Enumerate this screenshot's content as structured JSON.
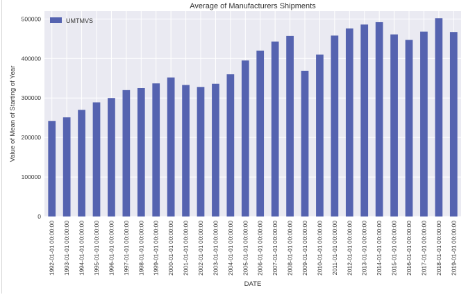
{
  "chart_data": {
    "type": "bar",
    "title": "Average of Manufacturers Shipments",
    "xlabel": "DATE",
    "ylabel": "Value of Mean of Starting of Year",
    "legend": {
      "position": "top-left",
      "entries": [
        "UMTMVS"
      ]
    },
    "grid": true,
    "ylim": [
      0,
      520000
    ],
    "yticks": [
      0,
      100000,
      200000,
      300000,
      400000,
      500000
    ],
    "categories": [
      "1992-01-01 00:00:00",
      "1993-01-01 00:00:00",
      "1994-01-01 00:00:00",
      "1995-01-01 00:00:00",
      "1996-01-01 00:00:00",
      "1997-01-01 00:00:00",
      "1998-01-01 00:00:00",
      "1999-01-01 00:00:00",
      "2000-01-01 00:00:00",
      "2001-01-01 00:00:00",
      "2002-01-01 00:00:00",
      "2003-01-01 00:00:00",
      "2004-01-01 00:00:00",
      "2005-01-01 00:00:00",
      "2006-01-01 00:00:00",
      "2007-01-01 00:00:00",
      "2008-01-01 00:00:00",
      "2009-01-01 00:00:00",
      "2010-01-01 00:00:00",
      "2011-01-01 00:00:00",
      "2012-01-01 00:00:00",
      "2013-01-01 00:00:00",
      "2014-01-01 00:00:00",
      "2015-01-01 00:00:00",
      "2016-01-01 00:00:00",
      "2017-01-01 00:00:00",
      "2018-01-01 00:00:00",
      "2019-01-01 00:00:00"
    ],
    "series": [
      {
        "name": "UMTMVS",
        "color": "#5563b0",
        "values": [
          242000,
          251000,
          270000,
          289000,
          300000,
          320000,
          325000,
          337000,
          352000,
          333000,
          328000,
          336000,
          360000,
          395000,
          420000,
          443000,
          457000,
          369000,
          410000,
          458000,
          476000,
          486000,
          492000,
          461000,
          447000,
          468000,
          502000,
          467000
        ]
      }
    ]
  }
}
